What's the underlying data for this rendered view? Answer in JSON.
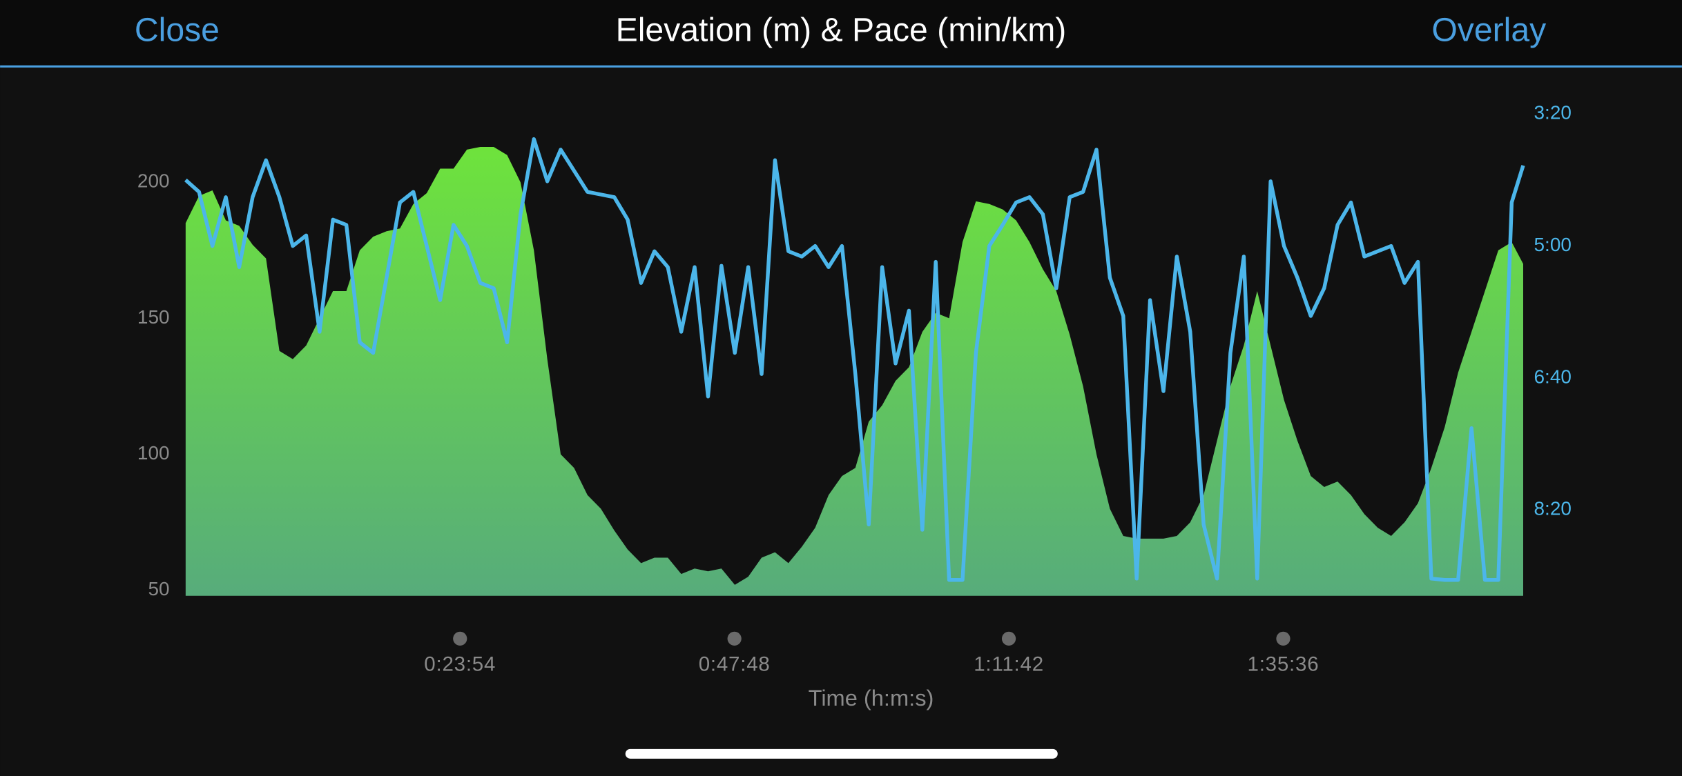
{
  "header": {
    "close": "Close",
    "overlay": "Overlay"
  },
  "chart_data": {
    "type": "area",
    "title": "Elevation (m) & Pace (min/km)",
    "xlabel": "Time (h:m:s)",
    "x": [
      0,
      70,
      140,
      210,
      280,
      350,
      420,
      490,
      560,
      630,
      700,
      770,
      840,
      910,
      980,
      1050,
      1120,
      1190,
      1260,
      1330,
      1400,
      1470,
      1540,
      1610,
      1680,
      1750,
      1820,
      1890,
      1960,
      2030,
      2100,
      2170,
      2240,
      2310,
      2380,
      2450,
      2520,
      2590,
      2660,
      2730,
      2800,
      2870,
      2940,
      3010,
      3080,
      3150,
      3220,
      3290,
      3360,
      3430,
      3500,
      3570,
      3640,
      3710,
      3780,
      3850,
      3920,
      3990,
      4060,
      4130,
      4200,
      4270,
      4340,
      4410,
      4480,
      4550,
      4620,
      4690,
      4760,
      4830,
      4900,
      4970,
      5040,
      5110,
      5180,
      5250,
      5320,
      5390,
      5460,
      5530,
      5600,
      5670,
      5740,
      5810,
      5880,
      5950,
      6020,
      6090,
      6160,
      6230,
      6300,
      6370,
      6440,
      6510,
      6580,
      6650,
      6720,
      6790,
      6860,
      6930,
      6990
    ],
    "series": [
      {
        "type": "area",
        "gradient": [
          "#6ee33c",
          "#57ac7b"
        ],
        "values": [
          185,
          195,
          197,
          186,
          184,
          177,
          172,
          138,
          135,
          140,
          150,
          160,
          160,
          175,
          180,
          182,
          183,
          192,
          196,
          205,
          205,
          212,
          213,
          213,
          210,
          200,
          175,
          135,
          100,
          95,
          85,
          80,
          72,
          65,
          60,
          62,
          62,
          56,
          58,
          57,
          58,
          52,
          55,
          62,
          64,
          60,
          66,
          73,
          85,
          92,
          95,
          112,
          118,
          127,
          132,
          145,
          152,
          150,
          178,
          193,
          192,
          190,
          186,
          178,
          168,
          160,
          144,
          125,
          100,
          80,
          70,
          69,
          69,
          69,
          70,
          75,
          85,
          105,
          125,
          140,
          160,
          140,
          120,
          105,
          92,
          88,
          90,
          85,
          78,
          73,
          70,
          75,
          82,
          95,
          110,
          130,
          145,
          160,
          175,
          178,
          170
        ]
      },
      {
        "type": "line",
        "axis": "y2",
        "color": "#4cb6ea",
        "values": [
          250,
          259,
          300,
          263,
          316,
          263,
          235,
          263,
          300,
          292,
          365,
          280,
          284,
          373,
          381,
          324,
          267,
          259,
          300,
          341,
          284,
          300,
          328,
          332,
          373,
          276,
          219,
          251,
          227,
          243,
          259,
          261,
          263,
          280,
          328,
          304,
          316,
          365,
          316,
          414,
          315,
          381,
          316,
          397,
          235,
          304,
          308,
          300,
          316,
          300,
          397,
          511,
          316,
          389,
          349,
          515,
          312,
          553,
          553,
          381,
          300,
          284,
          267,
          263,
          276,
          332,
          263,
          259,
          227,
          324,
          353,
          552,
          341,
          410,
          308,
          365,
          511,
          552,
          381,
          308,
          552,
          251,
          300,
          324,
          353,
          332,
          284,
          267,
          308,
          304,
          300,
          328,
          312,
          552,
          553,
          553,
          438,
          553,
          553,
          267,
          239
        ]
      }
    ],
    "xlim": [
      0,
      6990
    ],
    "xticks": [
      {
        "value": 1434,
        "label": "0:23:54"
      },
      {
        "value": 2868,
        "label": "0:47:48"
      },
      {
        "value": 4302,
        "label": "1:11:42"
      },
      {
        "value": 5736,
        "label": "1:35:36"
      }
    ],
    "ylim": [
      48,
      228
    ],
    "yticks": [
      50,
      100,
      150,
      200
    ],
    "y2lim": [
      565,
      194
    ],
    "y2ticks": [
      {
        "value": 200,
        "label": "3:20"
      },
      {
        "value": 300,
        "label": "5:00"
      },
      {
        "value": 400,
        "label": "6:40"
      },
      {
        "value": 500,
        "label": "8:20"
      }
    ],
    "grid": false
  }
}
